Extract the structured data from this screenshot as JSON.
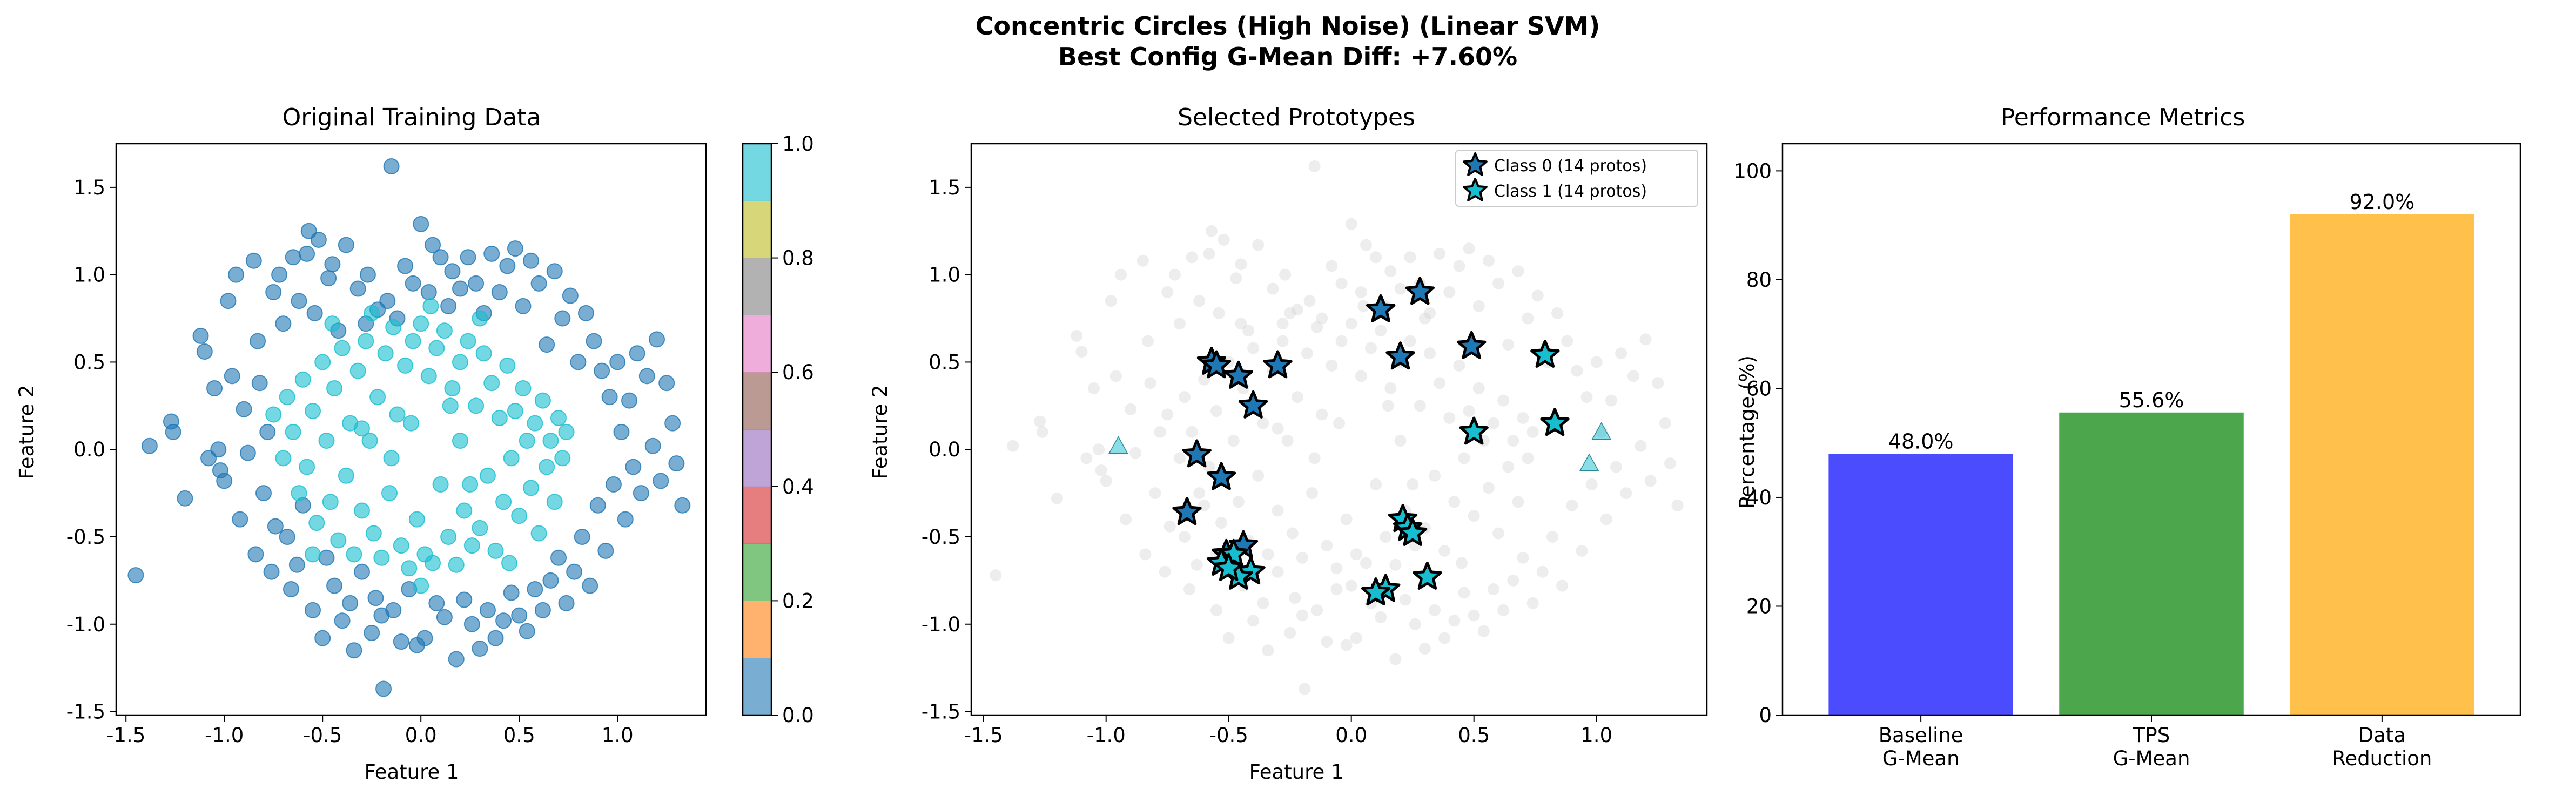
{
  "figure": {
    "title_line1": "Concentric Circles (High Noise) (Linear SVM)",
    "title_line2": "Best Config G-Mean Diff: +7.60%"
  },
  "colors": {
    "class0": "#1f77b4",
    "class1": "#17becf",
    "background_points": "#d3d3d3",
    "baseline_bar": "#0000ff",
    "tps_bar": "#008000",
    "reduction_bar": "#ffa500",
    "colormap": [
      "#1f77b4",
      "#ff7f0e",
      "#2ca02c",
      "#d62728",
      "#9467bd",
      "#8c564b",
      "#e377c2",
      "#7f7f7f",
      "#bcbd22",
      "#17becf"
    ]
  },
  "chart_data": [
    {
      "type": "scatter",
      "title": "Original Training Data",
      "xlabel": "Feature 1",
      "ylabel": "Feature 2",
      "xlim": [
        -1.55,
        1.45
      ],
      "ylim": [
        -1.52,
        1.75
      ],
      "xticks": [
        "-1.5",
        "-1.0",
        "-0.5",
        "0.0",
        "0.5",
        "1.0"
      ],
      "yticks": [
        "-1.5",
        "-1.0",
        "-0.5",
        "0.0",
        "0.5",
        "1.0",
        "1.5"
      ],
      "colorbar": {
        "ticks": [
          "0.0",
          "0.2",
          "0.4",
          "0.6",
          "0.8",
          "1.0"
        ],
        "range": [
          0,
          1
        ]
      },
      "grid": false,
      "series": [
        {
          "class": 0,
          "points": [
            [
              -1.45,
              -0.72
            ],
            [
              -1.38,
              0.02
            ],
            [
              -1.27,
              0.16
            ],
            [
              -1.26,
              0.1
            ],
            [
              -1.2,
              -0.28
            ],
            [
              -1.12,
              0.65
            ],
            [
              -1.1,
              0.56
            ],
            [
              -1.08,
              -0.05
            ],
            [
              -1.05,
              0.35
            ],
            [
              -1.03,
              0.0
            ],
            [
              -1.02,
              -0.12
            ],
            [
              -1.0,
              -0.18
            ],
            [
              -0.98,
              0.85
            ],
            [
              -0.96,
              0.42
            ],
            [
              -0.94,
              1.0
            ],
            [
              -0.92,
              -0.4
            ],
            [
              -0.9,
              0.23
            ],
            [
              -0.88,
              -0.02
            ],
            [
              -0.85,
              1.08
            ],
            [
              -0.84,
              -0.6
            ],
            [
              -0.83,
              0.62
            ],
            [
              -0.82,
              0.38
            ],
            [
              -0.8,
              -0.25
            ],
            [
              -0.78,
              0.1
            ],
            [
              -0.76,
              -0.7
            ],
            [
              -0.75,
              0.9
            ],
            [
              -0.74,
              -0.44
            ],
            [
              -0.72,
              1.0
            ],
            [
              -0.7,
              0.72
            ],
            [
              -0.68,
              -0.5
            ],
            [
              -0.66,
              -0.8
            ],
            [
              -0.65,
              1.1
            ],
            [
              -0.63,
              -0.66
            ],
            [
              -0.62,
              0.85
            ],
            [
              -0.6,
              -0.32
            ],
            [
              -0.58,
              1.12
            ],
            [
              -0.57,
              1.25
            ],
            [
              -0.55,
              -0.92
            ],
            [
              -0.54,
              0.78
            ],
            [
              -0.52,
              1.2
            ],
            [
              -0.5,
              -1.08
            ],
            [
              -0.48,
              -0.62
            ],
            [
              -0.47,
              0.98
            ],
            [
              -0.45,
              1.06
            ],
            [
              -0.44,
              -0.78
            ],
            [
              -0.42,
              0.68
            ],
            [
              -0.4,
              -0.98
            ],
            [
              -0.38,
              1.17
            ],
            [
              -0.36,
              -0.88
            ],
            [
              -0.34,
              -1.15
            ],
            [
              -0.32,
              0.92
            ],
            [
              -0.3,
              -0.7
            ],
            [
              -0.28,
              0.72
            ],
            [
              -0.27,
              1.0
            ],
            [
              -0.25,
              -1.05
            ],
            [
              -0.23,
              -0.85
            ],
            [
              -0.22,
              0.8
            ],
            [
              -0.2,
              -0.95
            ],
            [
              -0.19,
              -1.37
            ],
            [
              -0.17,
              0.85
            ],
            [
              -0.15,
              1.62
            ],
            [
              -0.14,
              -0.92
            ],
            [
              -0.12,
              0.75
            ],
            [
              -0.1,
              -1.1
            ],
            [
              -0.08,
              1.05
            ],
            [
              -0.06,
              -0.8
            ],
            [
              -0.04,
              0.95
            ],
            [
              -0.02,
              -1.12
            ],
            [
              0.0,
              1.29
            ],
            [
              0.02,
              -1.08
            ],
            [
              0.04,
              0.9
            ],
            [
              0.06,
              1.17
            ],
            [
              0.08,
              -0.88
            ],
            [
              0.1,
              1.1
            ],
            [
              0.12,
              -0.96
            ],
            [
              0.14,
              0.82
            ],
            [
              0.16,
              1.02
            ],
            [
              0.18,
              -1.2
            ],
            [
              0.2,
              0.92
            ],
            [
              0.22,
              -0.86
            ],
            [
              0.24,
              1.1
            ],
            [
              0.26,
              -1.0
            ],
            [
              0.28,
              0.95
            ],
            [
              0.3,
              -1.14
            ],
            [
              0.32,
              0.78
            ],
            [
              0.34,
              -0.92
            ],
            [
              0.36,
              1.12
            ],
            [
              0.38,
              -1.08
            ],
            [
              0.4,
              0.9
            ],
            [
              0.42,
              -0.98
            ],
            [
              0.44,
              1.05
            ],
            [
              0.46,
              -0.82
            ],
            [
              0.48,
              1.15
            ],
            [
              0.5,
              -0.95
            ],
            [
              0.52,
              0.82
            ],
            [
              0.54,
              -1.04
            ],
            [
              0.56,
              1.08
            ],
            [
              0.58,
              -0.8
            ],
            [
              0.6,
              0.95
            ],
            [
              0.62,
              -0.92
            ],
            [
              0.64,
              0.6
            ],
            [
              0.66,
              -0.75
            ],
            [
              0.68,
              1.02
            ],
            [
              0.7,
              -0.62
            ],
            [
              0.72,
              0.75
            ],
            [
              0.74,
              -0.88
            ],
            [
              0.76,
              0.88
            ],
            [
              0.78,
              -0.7
            ],
            [
              0.8,
              0.5
            ],
            [
              0.82,
              -0.5
            ],
            [
              0.84,
              0.78
            ],
            [
              0.86,
              -0.78
            ],
            [
              0.88,
              0.62
            ],
            [
              0.9,
              -0.32
            ],
            [
              0.92,
              0.45
            ],
            [
              0.94,
              -0.58
            ],
            [
              0.96,
              0.3
            ],
            [
              0.98,
              -0.2
            ],
            [
              1.0,
              0.5
            ],
            [
              1.02,
              0.1
            ],
            [
              1.04,
              -0.4
            ],
            [
              1.06,
              0.28
            ],
            [
              1.08,
              -0.1
            ],
            [
              1.1,
              0.55
            ],
            [
              1.12,
              -0.25
            ],
            [
              1.15,
              0.42
            ],
            [
              1.18,
              0.02
            ],
            [
              1.2,
              0.63
            ],
            [
              1.22,
              -0.18
            ],
            [
              1.25,
              0.38
            ],
            [
              1.28,
              0.15
            ],
            [
              1.3,
              -0.08
            ],
            [
              1.33,
              -0.32
            ]
          ]
        },
        {
          "class": 1,
          "points": [
            [
              -0.75,
              0.2
            ],
            [
              -0.7,
              -0.05
            ],
            [
              -0.68,
              0.3
            ],
            [
              -0.65,
              0.1
            ],
            [
              -0.62,
              -0.25
            ],
            [
              -0.6,
              0.4
            ],
            [
              -0.58,
              -0.1
            ],
            [
              -0.55,
              0.22
            ],
            [
              -0.53,
              -0.42
            ],
            [
              -0.5,
              0.5
            ],
            [
              -0.48,
              0.05
            ],
            [
              -0.46,
              -0.3
            ],
            [
              -0.44,
              0.35
            ],
            [
              -0.42,
              -0.52
            ],
            [
              -0.4,
              0.58
            ],
            [
              -0.38,
              -0.15
            ],
            [
              -0.36,
              0.15
            ],
            [
              -0.34,
              -0.6
            ],
            [
              -0.32,
              0.45
            ],
            [
              -0.3,
              -0.35
            ],
            [
              -0.28,
              0.62
            ],
            [
              -0.26,
              0.05
            ],
            [
              -0.24,
              -0.48
            ],
            [
              -0.22,
              0.3
            ],
            [
              -0.2,
              -0.62
            ],
            [
              -0.18,
              0.55
            ],
            [
              -0.16,
              -0.25
            ],
            [
              -0.14,
              0.7
            ],
            [
              -0.12,
              0.2
            ],
            [
              -0.1,
              -0.55
            ],
            [
              -0.08,
              0.48
            ],
            [
              -0.06,
              -0.68
            ],
            [
              -0.04,
              0.62
            ],
            [
              -0.02,
              -0.4
            ],
            [
              0.0,
              0.72
            ],
            [
              0.02,
              -0.6
            ],
            [
              0.04,
              0.42
            ],
            [
              0.06,
              -0.65
            ],
            [
              0.08,
              0.58
            ],
            [
              0.1,
              -0.2
            ],
            [
              0.12,
              0.68
            ],
            [
              0.14,
              -0.5
            ],
            [
              0.16,
              0.35
            ],
            [
              0.18,
              -0.66
            ],
            [
              0.2,
              0.5
            ],
            [
              0.22,
              -0.35
            ],
            [
              0.24,
              0.62
            ],
            [
              0.26,
              -0.55
            ],
            [
              0.28,
              0.25
            ],
            [
              0.3,
              -0.45
            ],
            [
              0.32,
              0.55
            ],
            [
              0.34,
              -0.15
            ],
            [
              0.36,
              0.38
            ],
            [
              0.38,
              -0.58
            ],
            [
              0.4,
              0.18
            ],
            [
              0.42,
              -0.3
            ],
            [
              0.44,
              0.48
            ],
            [
              0.46,
              -0.05
            ],
            [
              0.48,
              0.22
            ],
            [
              0.5,
              -0.38
            ],
            [
              0.52,
              0.35
            ],
            [
              0.54,
              0.05
            ],
            [
              0.56,
              -0.22
            ],
            [
              0.58,
              0.15
            ],
            [
              0.6,
              -0.48
            ],
            [
              0.62,
              0.28
            ],
            [
              0.64,
              -0.1
            ],
            [
              0.66,
              0.05
            ],
            [
              0.68,
              -0.3
            ],
            [
              0.7,
              0.18
            ],
            [
              0.72,
              -0.05
            ],
            [
              0.74,
              0.1
            ],
            [
              -0.45,
              0.72
            ],
            [
              -0.25,
              0.78
            ],
            [
              0.05,
              0.82
            ],
            [
              0.3,
              0.75
            ],
            [
              -0.55,
              -0.6
            ],
            [
              0.0,
              -0.78
            ],
            [
              0.45,
              -0.65
            ],
            [
              0.2,
              0.05
            ],
            [
              -0.15,
              -0.05
            ],
            [
              0.15,
              0.25
            ],
            [
              -0.3,
              0.12
            ],
            [
              0.25,
              -0.2
            ],
            [
              -0.05,
              0.15
            ]
          ]
        }
      ]
    },
    {
      "type": "scatter",
      "title": "Selected Prototypes",
      "xlabel": "Feature 1",
      "ylabel": "Feature 2",
      "xlim": [
        -1.55,
        1.45
      ],
      "ylim": [
        -1.52,
        1.75
      ],
      "xticks": [
        "-1.5",
        "-1.0",
        "-0.5",
        "0.0",
        "0.5",
        "1.0"
      ],
      "yticks": [
        "-1.5",
        "-1.0",
        "-0.5",
        "0.0",
        "0.5",
        "1.0",
        "1.5"
      ],
      "legend": {
        "placement": "top-right",
        "entries": [
          "Class 0 (14 protos)",
          "Class 1 (14 protos)"
        ]
      },
      "grid": false,
      "prototypes_class0": [
        [
          -0.57,
          0.5
        ],
        [
          -0.55,
          0.48
        ],
        [
          -0.46,
          0.42
        ],
        [
          -0.3,
          0.48
        ],
        [
          -0.4,
          0.25
        ],
        [
          -0.63,
          -0.03
        ],
        [
          -0.53,
          -0.16
        ],
        [
          -0.67,
          -0.36
        ],
        [
          -0.51,
          -0.6
        ],
        [
          -0.44,
          -0.55
        ],
        [
          0.12,
          0.8
        ],
        [
          0.28,
          0.9
        ],
        [
          0.2,
          0.53
        ],
        [
          0.49,
          0.59
        ]
      ],
      "prototypes_class1": [
        [
          0.79,
          0.54
        ],
        [
          0.83,
          0.15
        ],
        [
          0.5,
          0.1
        ],
        [
          0.21,
          -0.4
        ],
        [
          0.23,
          -0.45
        ],
        [
          0.25,
          -0.48
        ],
        [
          0.31,
          -0.73
        ],
        [
          0.14,
          -0.8
        ],
        [
          0.1,
          -0.82
        ],
        [
          -0.53,
          -0.65
        ],
        [
          -0.48,
          -0.6
        ],
        [
          -0.41,
          -0.7
        ],
        [
          -0.46,
          -0.73
        ],
        [
          -0.5,
          -0.68
        ]
      ],
      "misclassified_markers": [
        [
          -0.95,
          0.02
        ],
        [
          1.02,
          0.1
        ],
        [
          0.97,
          -0.08
        ]
      ]
    },
    {
      "type": "bar",
      "title": "Performance Metrics",
      "ylabel": "Percentage (%)",
      "categories": [
        "Baseline\nG-Mean",
        "TPS\nG-Mean",
        "Data\nReduction"
      ],
      "category_lines": [
        [
          "Baseline",
          "G-Mean"
        ],
        [
          "TPS",
          "G-Mean"
        ],
        [
          "Data",
          "Reduction"
        ]
      ],
      "values": [
        48.0,
        55.6,
        92.0
      ],
      "value_labels": [
        "48.0%",
        "55.6%",
        "92.0%"
      ],
      "ylim": [
        0,
        105
      ],
      "yticks": [
        "0",
        "20",
        "40",
        "60",
        "80",
        "100"
      ],
      "grid": false
    }
  ]
}
